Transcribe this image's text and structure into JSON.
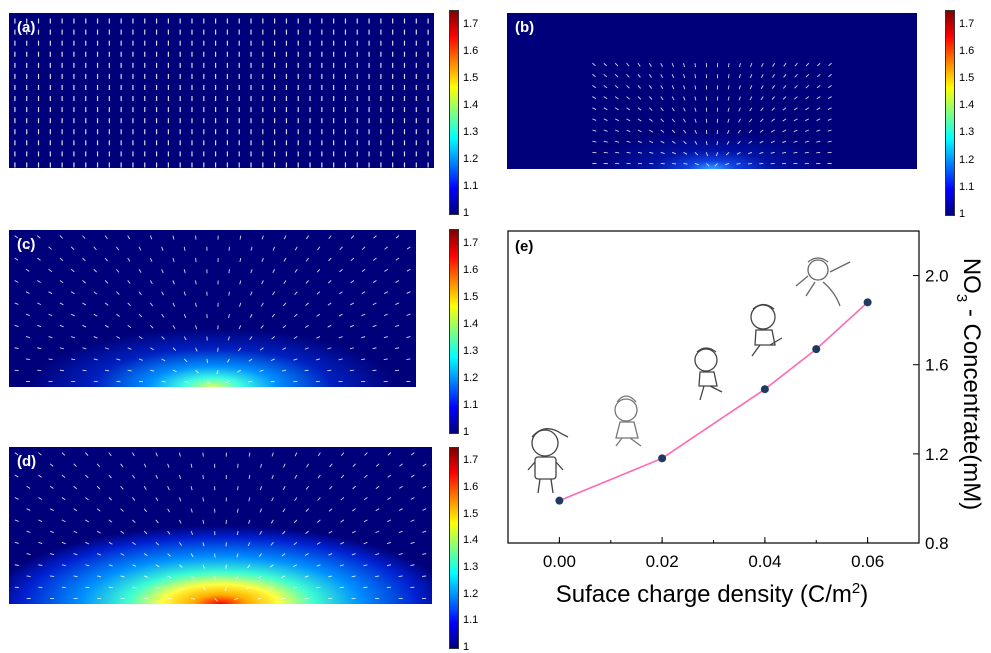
{
  "panels": [
    {
      "label": "(a)",
      "glow": 0.0,
      "arrows": "uniform"
    },
    {
      "label": "(b)",
      "glow": 0.25,
      "arrows": "sparse"
    },
    {
      "label": "(c)",
      "glow": 0.55,
      "arrows": "radial"
    },
    {
      "label": "(d)",
      "glow": 1.0,
      "arrows": "radial"
    }
  ],
  "colorbar": {
    "ticks": [
      "1.7",
      "1.6",
      "1.5",
      "1.4",
      "1.3",
      "1.2",
      "1.1",
      "1"
    ],
    "range": [
      1.0,
      1.75
    ],
    "colormap": [
      "#00007f",
      "#0000ff",
      "#0080ff",
      "#00ffff",
      "#80ff80",
      "#ffff00",
      "#ff8000",
      "#ff0000",
      "#7f0000"
    ]
  },
  "chart_data": {
    "label": "(e)",
    "type": "line",
    "x": [
      0.0,
      0.02,
      0.04,
      0.05,
      0.06
    ],
    "y": [
      0.99,
      1.18,
      1.49,
      1.67,
      1.88
    ],
    "xlabel": "Suface charge density (C/m²)",
    "ylabel": "NO₃⁻ Concentrate(mM)",
    "xticks": [
      "0.00",
      "0.02",
      "0.04",
      "0.06"
    ],
    "yticks": [
      "0.8",
      "1.2",
      "1.6",
      "2.0"
    ],
    "xlim": [
      -0.01,
      0.07
    ],
    "ylim": [
      0.8,
      2.2
    ],
    "line_color": "#ff69b4",
    "marker_color": "#1f3a5f",
    "y_axis_side": "right"
  }
}
